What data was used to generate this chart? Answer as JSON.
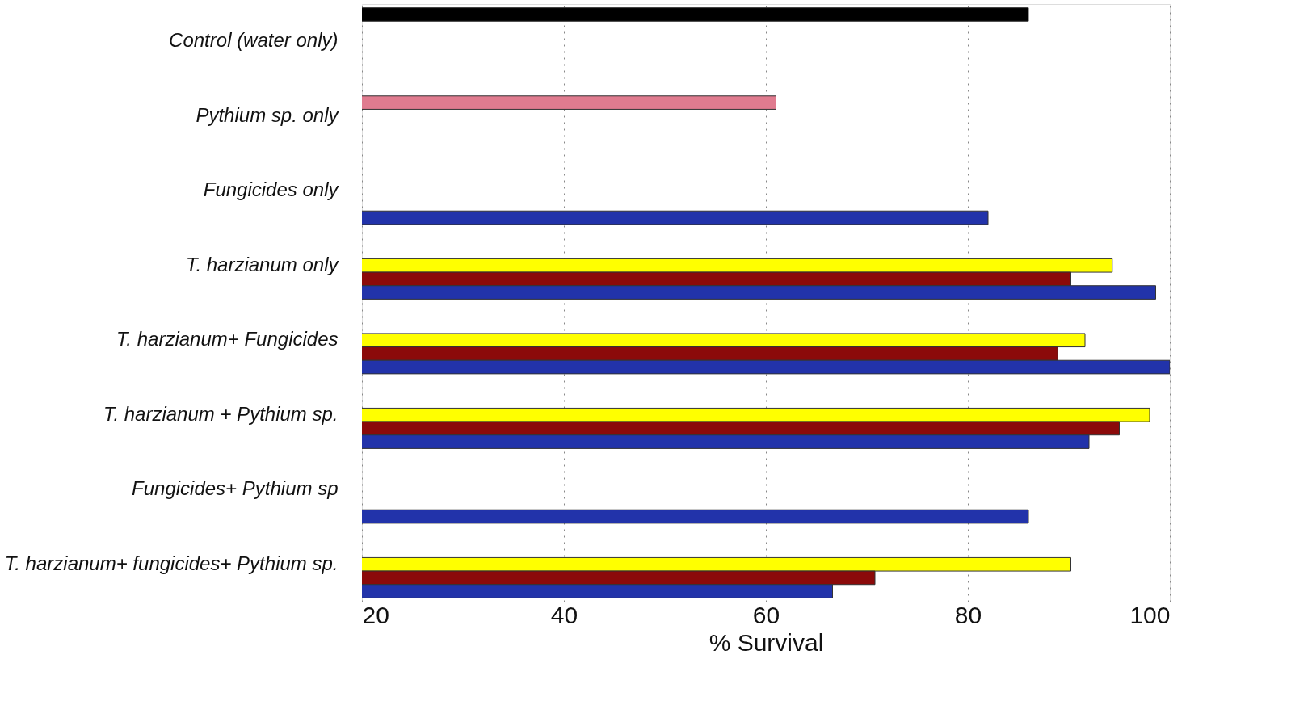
{
  "chart_data": {
    "type": "bar",
    "orientation": "horizontal",
    "xlabel": "% Survival",
    "categories": [
      "Control (water only)",
      "Pythium sp. only",
      "Fungicides only",
      "T. harzianum only",
      "T. harzianum+ Fungicides",
      "T. harzianum + Pythium sp.",
      "Fungicides+ Pythium sp",
      "T. harzianum+ fungicides+ Pythium sp."
    ],
    "series": [
      {
        "color": "#000000",
        "values": [
          86,
          null,
          null,
          null,
          null,
          null,
          null,
          null
        ]
      },
      {
        "color": "#e07b8f",
        "values": [
          null,
          61,
          null,
          null,
          null,
          null,
          null,
          null
        ]
      },
      {
        "color": "#ffff00",
        "values": [
          null,
          null,
          null,
          94.3,
          91.6,
          98,
          null,
          90.2
        ]
      },
      {
        "color": "#8b0a0a",
        "values": [
          null,
          null,
          null,
          90.2,
          88.9,
          95,
          null,
          70.8
        ]
      },
      {
        "color": "#2233aa",
        "values": [
          null,
          null,
          82,
          98.6,
          100,
          92,
          86,
          66.6
        ]
      }
    ],
    "xlim": [
      20,
      100
    ],
    "xticks": [
      20,
      40,
      60,
      80,
      100
    ],
    "grid": "x",
    "legend": false
  }
}
